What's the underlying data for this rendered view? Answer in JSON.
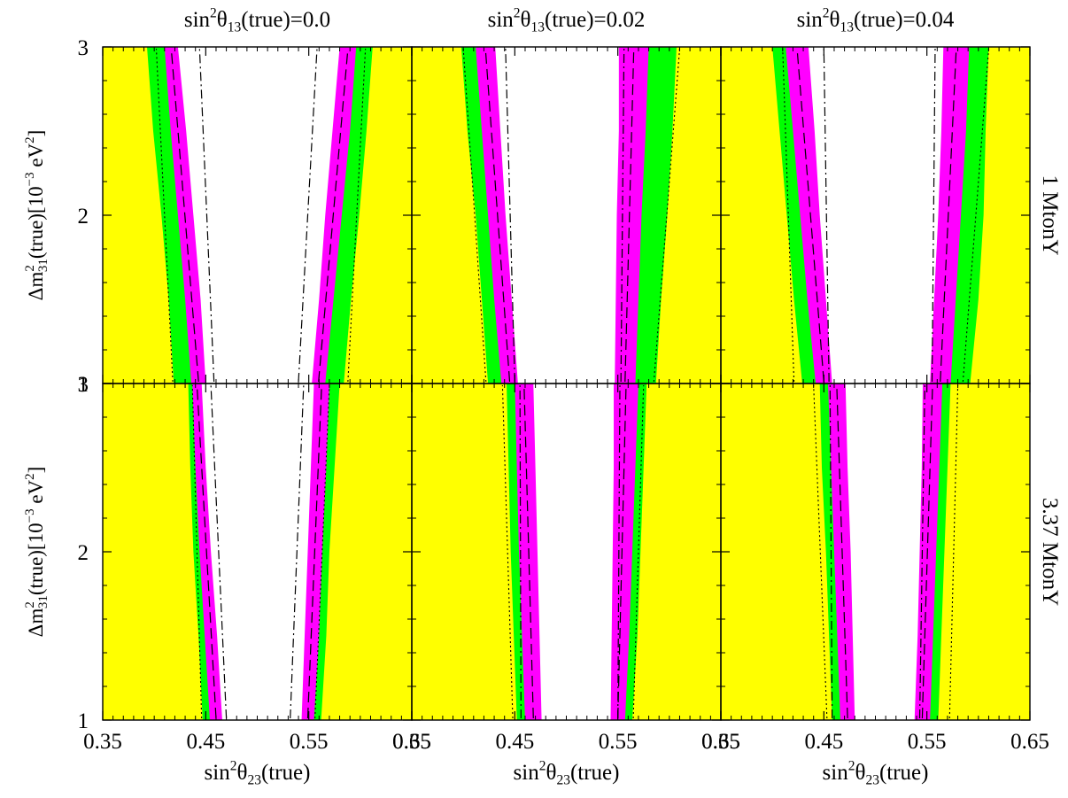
{
  "chart_data": {
    "type": "area",
    "layout": {
      "rows": 2,
      "cols": 3
    },
    "column_titles": [
      {
        "base": "sin",
        "sup": "2",
        "theta": "θ",
        "sub": "13",
        "rest": "(true)=0.0"
      },
      {
        "base": "sin",
        "sup": "2",
        "theta": "θ",
        "sub": "13",
        "rest": "(true)=0.02"
      },
      {
        "base": "sin",
        "sup": "2",
        "theta": "θ",
        "sub": "13",
        "rest": "(true)=0.04"
      }
    ],
    "row_labels": [
      "1 MtonY",
      "3.37 MtonY"
    ],
    "xlabel": {
      "base": "sin",
      "sup": "2",
      "theta": "θ",
      "sub": "23",
      "rest": "(true)"
    },
    "ylabel": {
      "pre": "Δm",
      "sup1": "2",
      "sub": "31",
      "mid": "(true)[10",
      "sup2": "−3",
      "unit": " eV",
      "sup3": "2",
      "close": "]"
    },
    "xlim": [
      0.35,
      0.65
    ],
    "ylim": [
      1,
      3
    ],
    "xticks": [
      "0.35",
      "0.45",
      "0.55",
      "0.65"
    ],
    "yticks": [
      "1",
      "2",
      "3"
    ],
    "colors": {
      "outer": "#ffff00",
      "green": "#00ff00",
      "magenta": "#ff00ff",
      "inner": "#ffffff"
    },
    "y": [
      1,
      1.5,
      2,
      2.5,
      3
    ],
    "panels": [
      {
        "row": 0,
        "col": 0,
        "left": {
          "yellow_edge": [
            0.419,
            0.414,
            0.407,
            0.399,
            0.393
          ],
          "green_edge": [
            0.436,
            0.43,
            0.423,
            0.416,
            0.41
          ],
          "magenta_edge": [
            0.45,
            0.445,
            0.438,
            0.431,
            0.423
          ]
        },
        "right": {
          "magenta_edge": [
            0.553,
            0.56,
            0.566,
            0.573,
            0.58
          ],
          "green_edge": [
            0.566,
            0.574,
            0.582,
            0.59,
            0.596
          ],
          "yellow_edge": [
            0.584,
            0.591,
            0.599,
            0.606,
            0.612
          ]
        },
        "dotted": [
          0.418,
          0.402,
          0.588,
          0.605
        ],
        "dashdot": [
          0.458,
          0.444,
          0.54,
          0.558
        ]
      },
      {
        "row": 0,
        "col": 1,
        "left": {
          "yellow_edge": [
            0.424,
            0.418,
            0.412,
            0.404,
            0.398
          ],
          "green_edge": [
            0.437,
            0.43,
            0.424,
            0.418,
            0.412
          ],
          "magenta_edge": [
            0.453,
            0.447,
            0.441,
            0.436,
            0.431
          ]
        },
        "right": {
          "magenta_edge": [
            0.547,
            0.548,
            0.549,
            0.551,
            0.551
          ],
          "green_edge": [
            0.567,
            0.57,
            0.573,
            0.577,
            0.58
          ],
          "yellow_edge": [
            0.587,
            0.592,
            0.598,
            0.603,
            0.607
          ]
        },
        "dotted": [
          0.422,
          0.4,
          0.585,
          0.61
        ],
        "dashdot": [
          0.45,
          0.441,
          0.553,
          0.556
        ]
      },
      {
        "row": 0,
        "col": 2,
        "left": {
          "yellow_edge": [
            0.429,
            0.421,
            0.414,
            0.407,
            0.4
          ],
          "green_edge": [
            0.442,
            0.434,
            0.427,
            0.42,
            0.413
          ],
          "magenta_edge": [
            0.458,
            0.452,
            0.446,
            0.441,
            0.435
          ]
        },
        "right": {
          "magenta_edge": [
            0.553,
            0.557,
            0.561,
            0.564,
            0.566
          ],
          "green_edge": [
            0.573,
            0.578,
            0.583,
            0.588,
            0.591
          ],
          "yellow_edge": [
            0.592,
            0.6,
            0.605,
            0.607,
            0.61
          ]
        },
        "dotted": [
          0.421,
          0.41,
          0.585,
          0.61
        ],
        "dashdot": [
          0.455,
          0.45,
          0.555,
          0.558
        ]
      },
      {
        "row": 1,
        "col": 0,
        "left": {
          "yellow_edge": [
            0.447,
            0.443,
            0.438,
            0.435,
            0.433
          ],
          "green_edge": [
            0.454,
            0.449,
            0.444,
            0.44,
            0.437
          ],
          "magenta_edge": [
            0.466,
            0.461,
            0.455,
            0.45,
            0.446
          ]
        },
        "right": {
          "magenta_edge": [
            0.543,
            0.546,
            0.549,
            0.552,
            0.555
          ],
          "green_edge": [
            0.555,
            0.56,
            0.563,
            0.567,
            0.57
          ],
          "yellow_edge": [
            0.562,
            0.567,
            0.57,
            0.575,
            0.58
          ]
        },
        "dotted": [
          0.446,
          0.437,
          0.556,
          0.57
        ],
        "dashdot": [
          0.47,
          0.455,
          0.532,
          0.545
        ]
      },
      {
        "row": 1,
        "col": 1,
        "left": {
          "yellow_edge": [
            0.452,
            0.449,
            0.446,
            0.444,
            0.442
          ],
          "green_edge": [
            0.46,
            0.457,
            0.454,
            0.452,
            0.45
          ],
          "magenta_edge": [
            0.476,
            0.474,
            0.472,
            0.47,
            0.468
          ]
        },
        "right": {
          "magenta_edge": [
            0.543,
            0.544,
            0.545,
            0.546,
            0.546
          ],
          "green_edge": [
            0.557,
            0.561,
            0.564,
            0.567,
            0.57
          ],
          "yellow_edge": [
            0.564,
            0.569,
            0.572,
            0.575,
            0.578
          ]
        },
        "dotted": [
          0.448,
          0.438,
          0.565,
          0.575
        ],
        "dashdot": [
          0.456,
          0.455,
          0.55,
          0.552
        ]
      },
      {
        "row": 1,
        "col": 2,
        "left": {
          "yellow_edge": [
            0.458,
            0.455,
            0.452,
            0.448,
            0.446
          ],
          "green_edge": [
            0.466,
            0.463,
            0.46,
            0.457,
            0.454
          ],
          "magenta_edge": [
            0.48,
            0.478,
            0.476,
            0.473,
            0.471
          ]
        },
        "right": {
          "magenta_edge": [
            0.538,
            0.541,
            0.543,
            0.545,
            0.546
          ],
          "green_edge": [
            0.553,
            0.556,
            0.559,
            0.562,
            0.565
          ],
          "yellow_edge": [
            0.561,
            0.564,
            0.567,
            0.57,
            0.573
          ]
        },
        "dotted": [
          0.453,
          0.44,
          0.572,
          0.58
        ],
        "dashdot": [
          0.458,
          0.456,
          0.543,
          0.548
        ]
      }
    ]
  }
}
